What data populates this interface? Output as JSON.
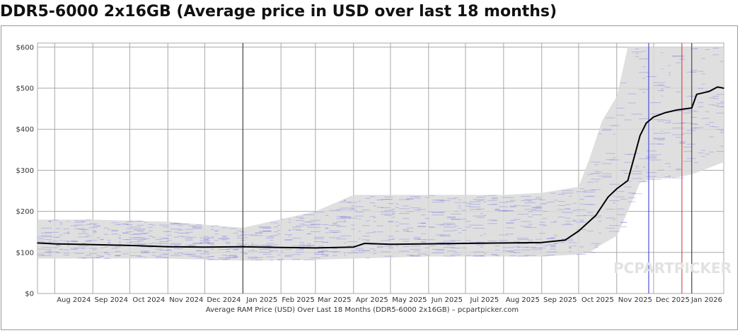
{
  "page": {
    "title": "DDR5-6000 2x16GB (Average price in USD over last 18 months)"
  },
  "colors": {
    "average_line": "#000000",
    "price_band": "#d9d9d9",
    "price_ticks": "#6a6ae6",
    "grid": "#a8a8a8",
    "marker_blue": "#3030d0",
    "marker_red": "#d03030",
    "marker_dark": "#333333"
  },
  "chart_data": {
    "type": "line",
    "title": "DDR5-6000 2x16GB (Average price in USD over last 18 months)",
    "xlabel": "Average RAM Price (USD) Over Last 18 Months (DDR5-6000 2x16GB) – pcpartpicker.com",
    "ylabel": "",
    "ylim": [
      0,
      610
    ],
    "xlim": [
      "2024-07-18",
      "2026-01-27"
    ],
    "y_ticks": [
      "$0",
      "$100",
      "$200",
      "$300",
      "$400",
      "$500",
      "$600"
    ],
    "y_tick_values": [
      0,
      100,
      200,
      300,
      400,
      500,
      600
    ],
    "x_tick_dates": [
      "2024-08-01",
      "2024-09-01",
      "2024-10-01",
      "2024-11-01",
      "2024-12-01",
      "2025-01-01",
      "2025-02-01",
      "2025-03-01",
      "2025-04-01",
      "2025-05-01",
      "2025-06-01",
      "2025-07-01",
      "2025-08-01",
      "2025-09-01",
      "2025-10-01",
      "2025-11-01",
      "2025-12-01",
      "2026-01-01"
    ],
    "x_tick_labels": [
      "Aug 2024",
      "Sep 2024",
      "Oct 2024",
      "Nov 2024",
      "Dec 2024",
      "Jan 2025",
      "Feb 2025",
      "Mar 2025",
      "Apr 2025",
      "May 2025",
      "Jun 2025",
      "Jul 2025",
      "Aug 2025",
      "Sep 2025",
      "Oct 2025",
      "Nov 2025",
      "Dec 2025",
      "Jan 2026"
    ],
    "grid": true,
    "watermark": "PCPARTPICKER",
    "markers": [
      {
        "date": "2025-01-01",
        "color": "#333333"
      },
      {
        "date": "2025-11-27",
        "color": "#3030d0"
      },
      {
        "date": "2025-12-24",
        "color": "#d03030"
      },
      {
        "date": "2026-01-01",
        "color": "#333333"
      }
    ],
    "series": [
      {
        "x": [
          "2024-07-18",
          "2024-08-01",
          "2024-09-01",
          "2024-10-01",
          "2024-11-01",
          "2024-12-01",
          "2025-01-01",
          "2025-02-01",
          "2025-03-01",
          "2025-04-01",
          "2025-04-10",
          "2025-05-01",
          "2025-06-01",
          "2025-07-01",
          "2025-08-01",
          "2025-09-01",
          "2025-09-20",
          "2025-10-01",
          "2025-10-15",
          "2025-10-25",
          "2025-11-01",
          "2025-11-10",
          "2025-11-15",
          "2025-11-20",
          "2025-11-25",
          "2025-12-01",
          "2025-12-10",
          "2025-12-20",
          "2026-01-01",
          "2026-01-05",
          "2026-01-15",
          "2026-01-22",
          "2026-01-27"
        ],
        "values": [
          123,
          121,
          119,
          117,
          114,
          113,
          114,
          112,
          111,
          113,
          122,
          120,
          121,
          122,
          123,
          124,
          130,
          152,
          190,
          235,
          255,
          275,
          330,
          385,
          415,
          430,
          440,
          447,
          452,
          485,
          492,
          503,
          500
        ]
      }
    ],
    "band_upper": {
      "x": [
        "2024-07-18",
        "2024-09-01",
        "2024-11-01",
        "2025-01-01",
        "2025-03-01",
        "2025-04-01",
        "2025-06-01",
        "2025-08-01",
        "2025-09-01",
        "2025-10-01",
        "2025-10-10",
        "2025-10-20",
        "2025-11-01",
        "2025-11-10",
        "2025-11-20",
        "2025-12-01",
        "2025-12-15",
        "2026-01-01",
        "2026-01-27"
      ],
      "values": [
        180,
        180,
        175,
        160,
        200,
        240,
        240,
        240,
        245,
        260,
        330,
        420,
        480,
        600,
        600,
        600,
        600,
        600,
        600
      ]
    },
    "band_lower": {
      "x": [
        "2024-07-18",
        "2024-09-01",
        "2024-11-01",
        "2025-01-01",
        "2025-03-01",
        "2025-04-01",
        "2025-06-01",
        "2025-08-01",
        "2025-09-01",
        "2025-10-01",
        "2025-10-10",
        "2025-10-20",
        "2025-11-01",
        "2025-11-10",
        "2025-11-20",
        "2025-12-01",
        "2025-12-15",
        "2026-01-01",
        "2026-01-27"
      ],
      "values": [
        85,
        85,
        85,
        80,
        82,
        85,
        90,
        90,
        90,
        95,
        100,
        120,
        140,
        200,
        270,
        280,
        280,
        290,
        320
      ]
    }
  }
}
